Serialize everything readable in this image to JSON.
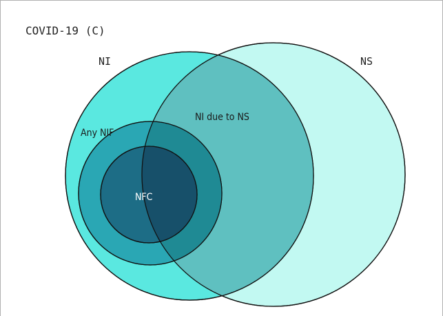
{
  "panel": {
    "title": "COVID-19 (C)"
  },
  "labels": {
    "ni": "NI",
    "ns": "NS",
    "ni_due_to_ns": "NI due to NS",
    "any_nif": "Any NIF",
    "nfc": "NFC"
  },
  "colors": {
    "ni_fill": "#5ae8e0",
    "ns_fill": "#c2f9f2",
    "overlap_fill": "#5fc0c0",
    "any_nif_fill": "#2aa7b4",
    "any_nif_overlap_fill": "#1f8a94",
    "nfc_fill": "#1d6d86",
    "nfc_overlap_fill": "#17506a",
    "stroke": "#111111"
  }
}
